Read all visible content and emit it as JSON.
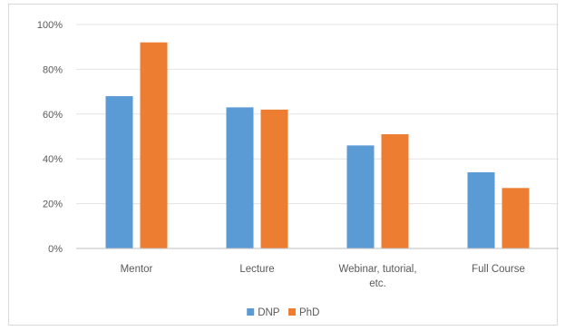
{
  "chart_data": {
    "type": "bar",
    "title": "",
    "xlabel": "",
    "ylabel": "",
    "categories": [
      [
        "Mentor"
      ],
      [
        "Lecture"
      ],
      [
        "Webinar, tutorial,",
        "etc."
      ],
      [
        "Full Course"
      ]
    ],
    "series": [
      {
        "name": "DNP",
        "color": "#5b9bd5",
        "values": [
          68,
          63,
          46,
          34
        ]
      },
      {
        "name": "PhD",
        "color": "#ed7d31",
        "values": [
          92,
          62,
          51,
          27
        ]
      }
    ],
    "ylim": [
      0,
      100
    ],
    "yticks": [
      0,
      20,
      40,
      60,
      80,
      100
    ],
    "ytick_labels": [
      "0%",
      "20%",
      "40%",
      "60%",
      "80%",
      "100%"
    ],
    "grid": true,
    "legend_position": "bottom"
  }
}
